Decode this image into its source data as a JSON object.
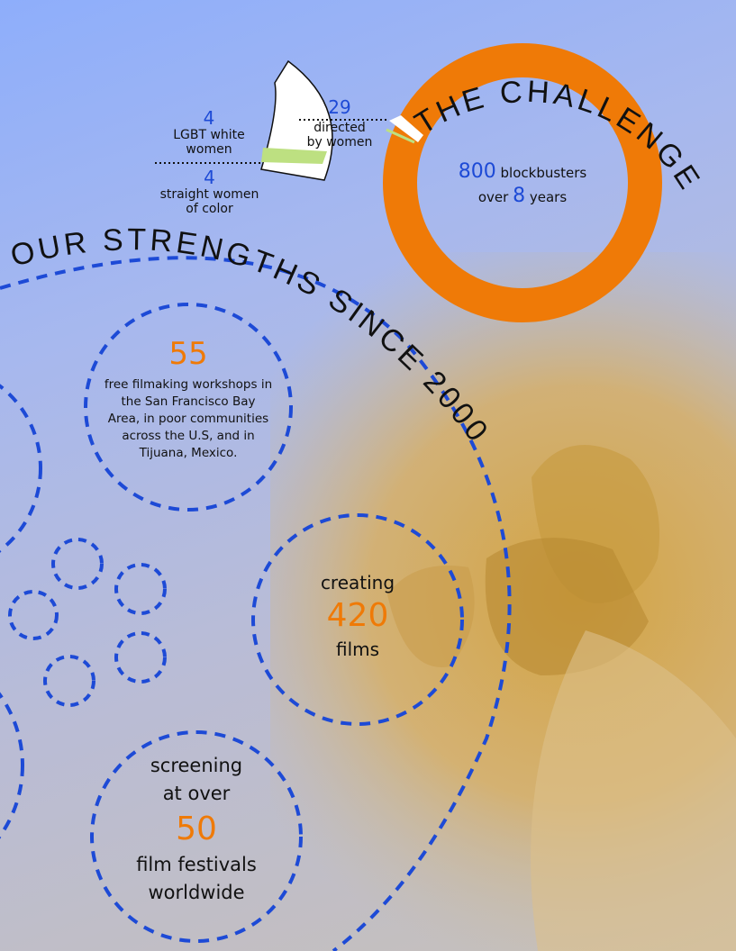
{
  "colors": {
    "accent_blue": "#1d4ad6",
    "accent_orange": "#ef7a07",
    "green": "#bde081"
  },
  "challenge": {
    "title": "THE CHALLENGE",
    "total_films": "800",
    "total_label": "blockbusters",
    "years_prefix": "over",
    "years": "8",
    "years_label": "years",
    "directed_by_women_count": "29",
    "directed_by_women_label_1": "directed",
    "directed_by_women_label_2": "by women",
    "lgbt_white_count": "4",
    "lgbt_white_label_1": "LGBT white",
    "lgbt_white_label_2": "women",
    "straight_color_count": "4",
    "straight_color_label_1": "straight women",
    "straight_color_label_2": "of color"
  },
  "strengths": {
    "title": "OUR STRENGTHS SINCE 2000",
    "workshops": {
      "count": "55",
      "line1": "free filmaking workshops in",
      "line2": "the San Francisco Bay",
      "line3": "Area, in poor communities",
      "line4": "across the U.S, and in",
      "line5": "Tijuana, Mexico."
    },
    "films": {
      "prefix": "creating",
      "count": "420",
      "suffix": "films"
    },
    "festivals": {
      "prefix1": "screening",
      "prefix2": "at over",
      "count": "50",
      "suffix1": "film festivals",
      "suffix2": "worldwide"
    }
  }
}
